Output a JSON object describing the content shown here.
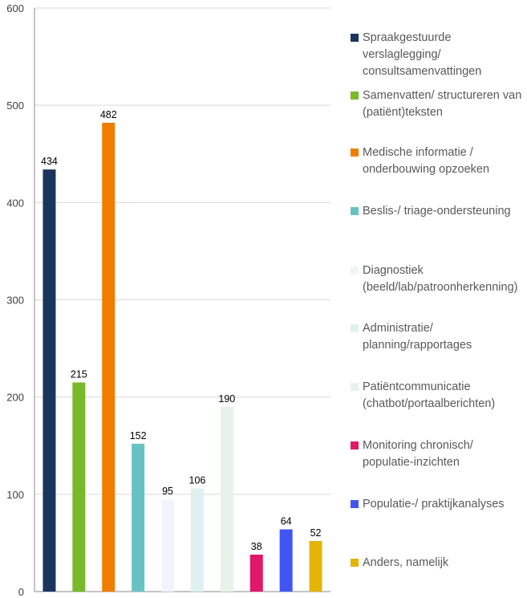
{
  "chart_data": {
    "type": "bar",
    "title": "",
    "xlabel": "",
    "ylabel": "",
    "ylim": [
      0,
      600
    ],
    "yticks": [
      0,
      100,
      200,
      300,
      400,
      500,
      600
    ],
    "grid": true,
    "legend_position": "right",
    "categories": [
      "Spraakgestuurde verslaglegging/ consultsamenvattingen",
      "Samenvatten/ structureren van (patiënt)teksten",
      "Medische informatie / onderbouwing opzoeken",
      "Beslis-/ triage-ondersteuning",
      "Diagnostiek (beeld/lab/patroonherkenning)",
      "Administratie/ planning/rapportages",
      "Patiëntcommunicatie (chatbot/portaalberichten)",
      "Monitoring chronisch/ populatie-inzichten",
      "Populatie-/ praktijkanalyses",
      "Anders, namelijk"
    ],
    "values": [
      434,
      215,
      482,
      152,
      95,
      106,
      190,
      38,
      64,
      52
    ],
    "colors": [
      "#1a355e",
      "#78b82a",
      "#f07d00",
      "#67c3c3",
      "#f1f5fb",
      "#e0f0f0",
      "#e8f2e8",
      "#e0176a",
      "#4155f5",
      "#e4b406"
    ]
  }
}
